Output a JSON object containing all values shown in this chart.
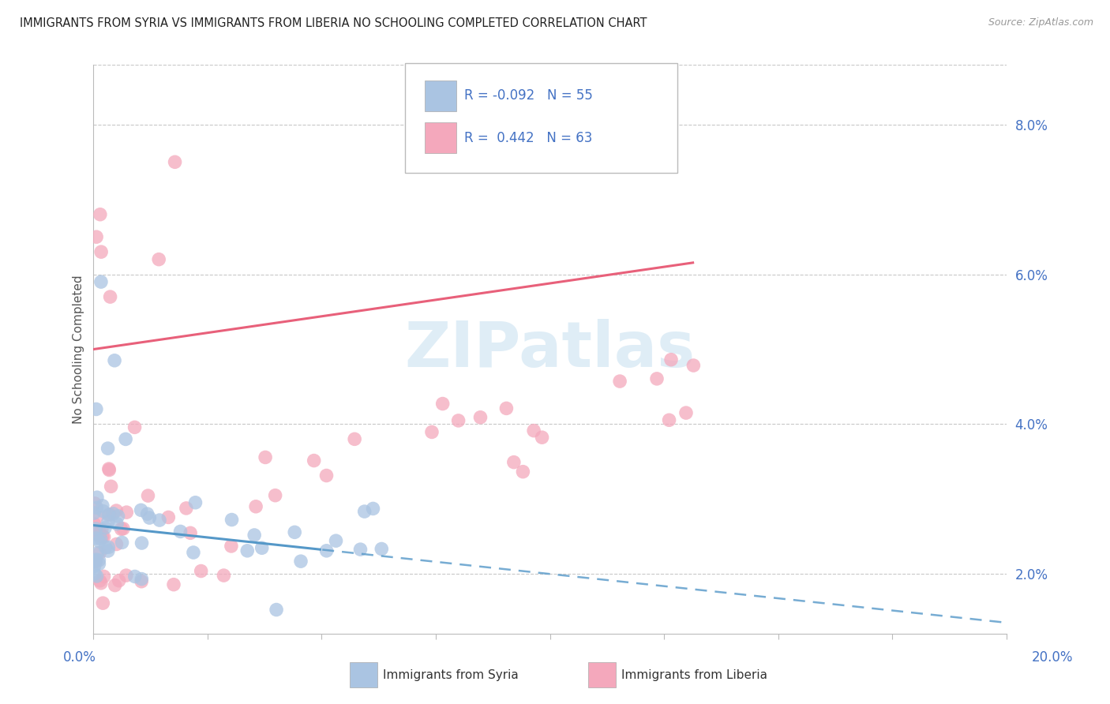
{
  "title": "IMMIGRANTS FROM SYRIA VS IMMIGRANTS FROM LIBERIA NO SCHOOLING COMPLETED CORRELATION CHART",
  "source": "Source: ZipAtlas.com",
  "ylabel": "No Schooling Completed",
  "xlim": [
    0.0,
    20.0
  ],
  "ylim": [
    1.2,
    8.8
  ],
  "yticks": [
    2.0,
    4.0,
    6.0,
    8.0
  ],
  "syria_R": -0.092,
  "syria_N": 55,
  "liberia_R": 0.442,
  "liberia_N": 63,
  "syria_color": "#aac4e2",
  "liberia_color": "#f4a8bc",
  "syria_line_color": "#5598c8",
  "liberia_line_color": "#e8607a",
  "watermark": "ZIPatlas"
}
